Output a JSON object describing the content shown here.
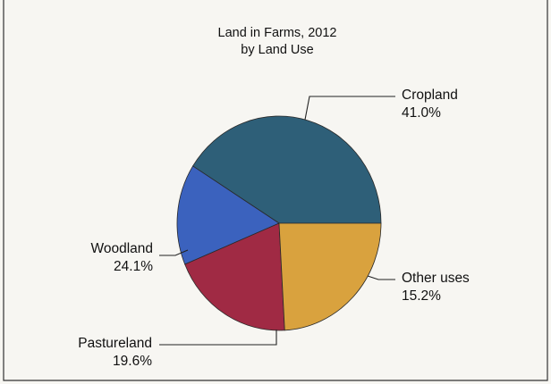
{
  "chart_data": {
    "type": "pie",
    "title": "Land in Farms, 2012",
    "subtitle": "by Land Use",
    "slices": [
      {
        "name": "Cropland",
        "label": "41.0%",
        "value": 41.0,
        "color": "#2e5f78"
      },
      {
        "name": "Other uses",
        "label": "15.2%",
        "value": 15.2,
        "color": "#3b62be"
      },
      {
        "name": "Pastureland",
        "label": "19.6%",
        "value": 19.6,
        "color": "#a02a44"
      },
      {
        "name": "Woodland",
        "label": "24.1%",
        "value": 24.1,
        "color": "#d9a23e"
      }
    ]
  }
}
